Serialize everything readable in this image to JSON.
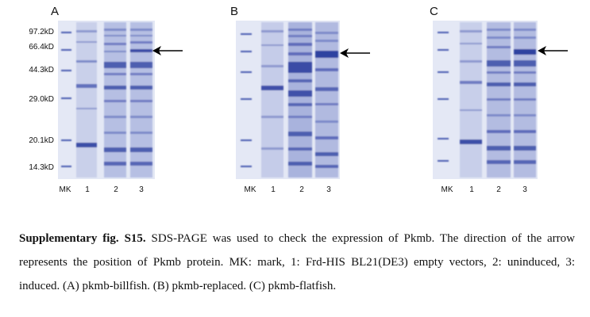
{
  "markers": [
    "97.2kD",
    "66.4kD",
    "44.3kD",
    "29.0kD",
    "20.1kD",
    "14.3kD"
  ],
  "lane_labels": [
    "MK",
    "1",
    "2",
    "3"
  ],
  "panels": [
    {
      "letter": "A"
    },
    {
      "letter": "B"
    },
    {
      "letter": "C"
    }
  ],
  "caption": {
    "title": "Supplementary fig. S15.",
    "text": " SDS-PAGE was used to check the expression of Pkmb. The direction of the arrow represents the position of Pkmb protein. MK: mark, 1: Frd-HIS BL21(DE3) empty vectors, 2: uninduced, 3: induced. (A) pkmb-billfish. (B) pkmb-replaced. (C) pkmb-flatfish."
  },
  "colors": {
    "gel_background": "#dfe4f4",
    "band": "#3c4fa8",
    "arrow": "#000000"
  }
}
